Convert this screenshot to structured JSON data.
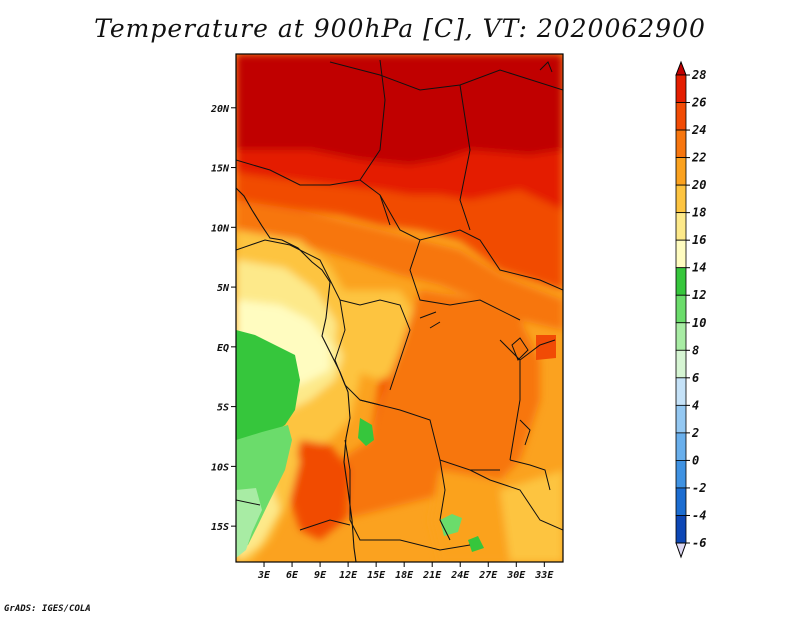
{
  "title": "Temperature at 900hPa [C], VT: 2020062900",
  "footer": "GrADS: IGES/COLA",
  "map": {
    "lat_labels": [
      "20N",
      "15N",
      "10N",
      "5N",
      "EQ",
      "5S",
      "10S",
      "15S"
    ],
    "lon_labels": [
      "3E",
      "6E",
      "9E",
      "12E",
      "15E",
      "18E",
      "21E",
      "24E",
      "27E",
      "30E",
      "33E"
    ],
    "lat_range": [
      -18,
      24.5
    ],
    "lon_range": [
      0,
      35
    ]
  },
  "colorbar": {
    "labels": [
      "28",
      "26",
      "24",
      "22",
      "20",
      "18",
      "16",
      "14",
      "12",
      "10",
      "8",
      "6",
      "4",
      "2",
      "0",
      "-2",
      "-4",
      "-6"
    ],
    "colors": [
      "#c00000",
      "#e41e00",
      "#f14b05",
      "#f7760f",
      "#fba21f",
      "#fdc441",
      "#fde98a",
      "#fffcc0",
      "#36c63c",
      "#6bdc6b",
      "#a8eca4",
      "#d6f5d3",
      "#c5e2f8",
      "#94c8f2",
      "#69afec",
      "#3f92e2",
      "#1c6dd1",
      "#0d47b5",
      "#0a1f82",
      "#ddd8f2"
    ]
  }
}
